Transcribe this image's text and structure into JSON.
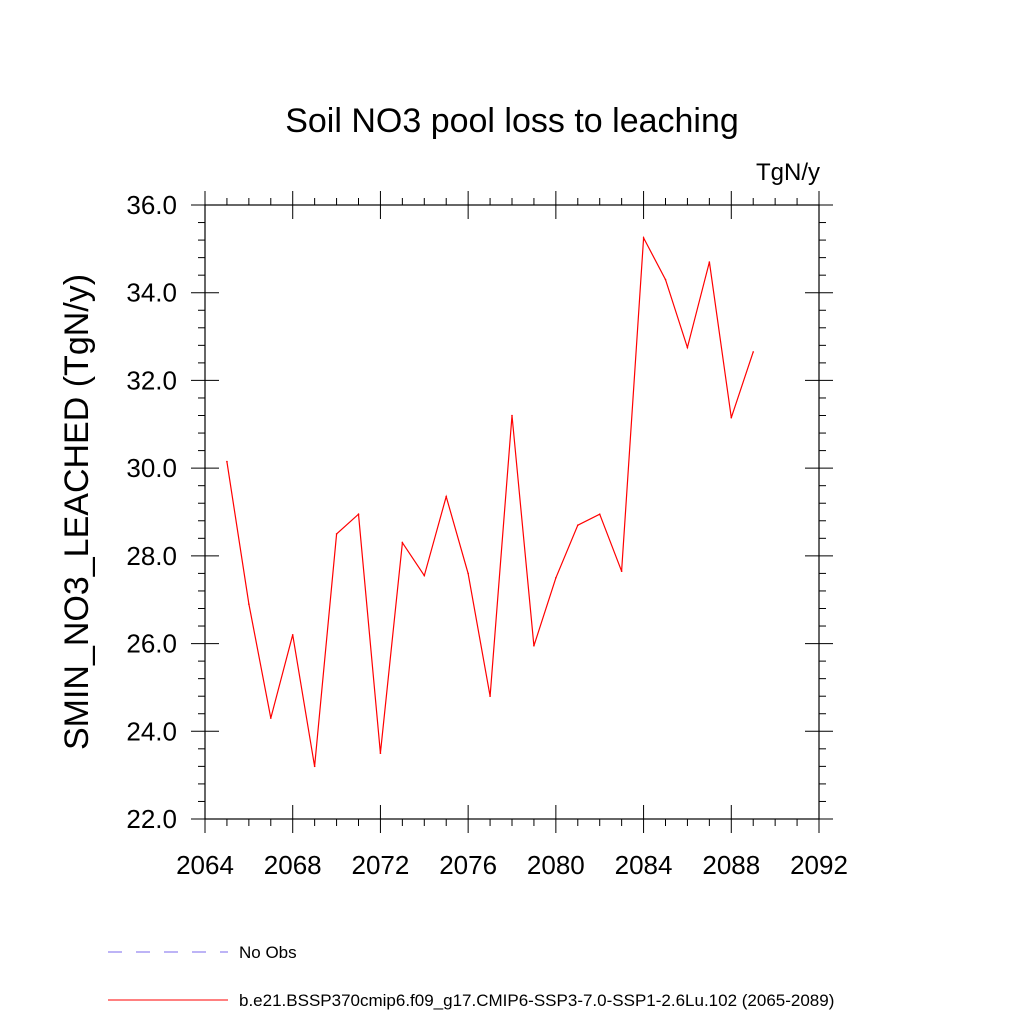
{
  "chart_data": {
    "type": "line",
    "title": "Soil NO3 pool loss to leaching",
    "units_label": "TgN/y",
    "ylabel": "SMIN_NO3_LEACHED  (TgN/y)",
    "xlabel": "",
    "xlim": [
      2064,
      2092
    ],
    "ylim": [
      22.0,
      36.0
    ],
    "x_ticks": [
      2064,
      2068,
      2072,
      2076,
      2080,
      2084,
      2088,
      2092
    ],
    "x_tick_labels": [
      "2064",
      "2068",
      "2072",
      "2076",
      "2080",
      "2084",
      "2088",
      "2092"
    ],
    "y_ticks": [
      22,
      24,
      26,
      28,
      30,
      32,
      34,
      36
    ],
    "y_tick_labels": [
      "22.0",
      "24.0",
      "26.0",
      "28.0",
      "30.0",
      "32.0",
      "34.0",
      "36.0"
    ],
    "grid": false,
    "series": [
      {
        "name": "b.e21.BSSP370cmip6.f09_g17.CMIP6-SSP3-7.0-SSP1-2.6Lu.102 (2065-2089)",
        "color": "#ff0000",
        "x": [
          2065,
          2066,
          2067,
          2068,
          2069,
          2070,
          2071,
          2072,
          2073,
          2074,
          2075,
          2076,
          2077,
          2078,
          2079,
          2080,
          2081,
          2082,
          2083,
          2084,
          2085,
          2086,
          2087,
          2088,
          2089
        ],
        "y": [
          30.15,
          26.9,
          24.3,
          26.2,
          23.2,
          28.5,
          28.95,
          23.5,
          28.3,
          27.55,
          29.35,
          27.6,
          24.8,
          31.2,
          25.95,
          27.5,
          28.7,
          28.95,
          27.65,
          35.25,
          34.3,
          32.75,
          34.7,
          31.15,
          32.65
        ]
      }
    ],
    "legend": [
      {
        "label": "No Obs",
        "color": "#7b68ee",
        "style": "dashed"
      },
      {
        "label": "b.e21.BSSP370cmip6.f09_g17.CMIP6-SSP3-7.0-SSP1-2.6Lu.102 (2065-2089)",
        "color": "#ff0000",
        "style": "solid"
      }
    ],
    "legend_position": "bottom-left"
  }
}
